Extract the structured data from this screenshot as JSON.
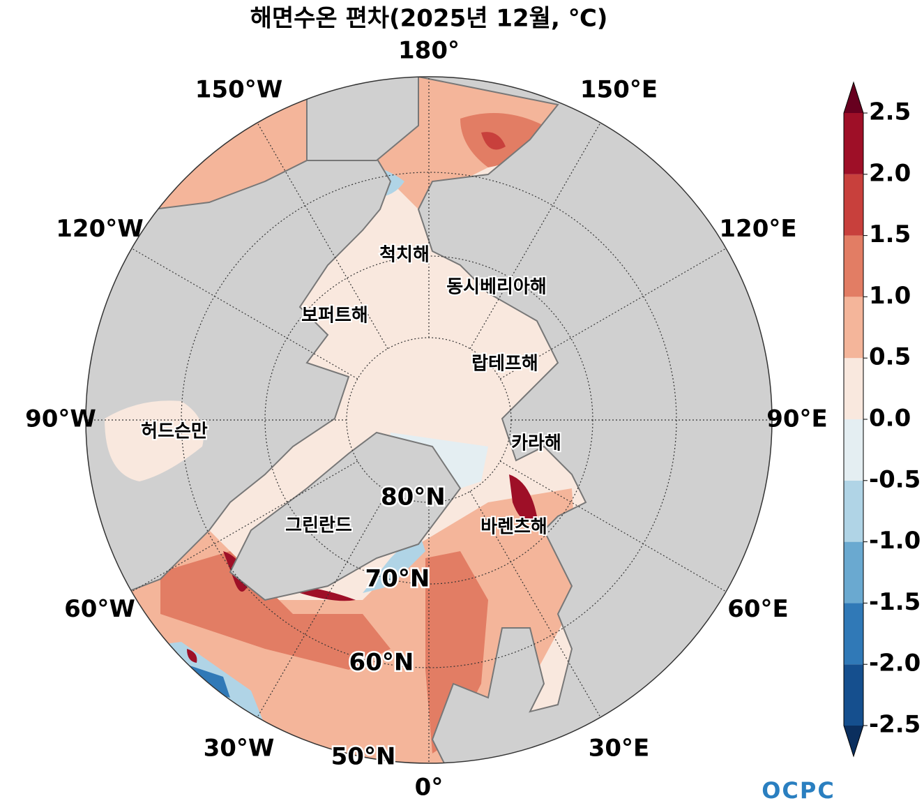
{
  "title": "해면수온 편차(2025년 12월, ℃)",
  "map": {
    "longitude_labels": [
      "180°",
      "150°E",
      "120°E",
      "90°E",
      "60°E",
      "30°E",
      "0°",
      "30°W",
      "60°W",
      "90°W",
      "120°W",
      "150°W"
    ],
    "latitude_labels": [
      "80°N",
      "70°N",
      "60°N",
      "50°N"
    ],
    "region_labels": [
      "척치해",
      "동시베리아해",
      "보퍼트해",
      "랍테프해",
      "허드슨만",
      "카라해",
      "그린란드",
      "바렌츠해"
    ]
  },
  "colorbar": {
    "lim": [
      -2.5,
      2.5
    ],
    "ticks": [
      -2.5,
      {
        "value": -2,
        "label": "-2.0"
      },
      -1.5,
      {
        "value": -1,
        "label": "-1.0"
      },
      -0.5,
      {
        "value": 0,
        "label": "0.0"
      },
      0.5,
      {
        "value": 1,
        "label": "1.0"
      },
      1.5,
      {
        "value": 2,
        "label": "2.0"
      },
      2.5
    ],
    "colors": [
      "#154f8e",
      "#3079b7",
      "#6aa9d0",
      "#b0d4e6",
      "#e4eef2",
      "#f9e8de",
      "#f4b59a",
      "#e27d64",
      "#c8403c",
      "#9e0f27"
    ],
    "extend_colors": [
      "#0b2f5e",
      "#67001f"
    ]
  },
  "logo": "OCPC"
}
